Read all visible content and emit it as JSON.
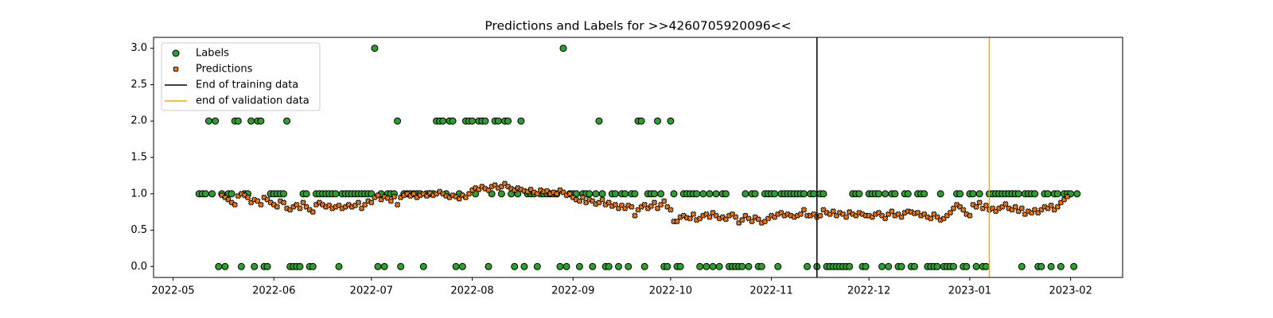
{
  "chart_data": {
    "type": "scatter",
    "title": "Predictions and Labels for >>4260705920096<<",
    "x": [
      "2022-05-09",
      "2022-05-10",
      "2022-05-11",
      "2022-05-12",
      "2022-05-13",
      "2022-05-14",
      "2022-05-15",
      "2022-05-16",
      "2022-05-17",
      "2022-05-18",
      "2022-05-19",
      "2022-05-20",
      "2022-05-21",
      "2022-05-22",
      "2022-05-23",
      "2022-05-24",
      "2022-05-25",
      "2022-05-26",
      "2022-05-27",
      "2022-05-28",
      "2022-05-29",
      "2022-05-30",
      "2022-05-31",
      "2022-06-01",
      "2022-06-02",
      "2022-06-03",
      "2022-06-04",
      "2022-06-05",
      "2022-06-06",
      "2022-06-07",
      "2022-06-08",
      "2022-06-09",
      "2022-06-10",
      "2022-06-11",
      "2022-06-12",
      "2022-06-13",
      "2022-06-14",
      "2022-06-15",
      "2022-06-16",
      "2022-06-17",
      "2022-06-18",
      "2022-06-19",
      "2022-06-20",
      "2022-06-21",
      "2022-06-22",
      "2022-06-23",
      "2022-06-24",
      "2022-06-25",
      "2022-06-26",
      "2022-06-27",
      "2022-06-28",
      "2022-06-29",
      "2022-06-30",
      "2022-07-01",
      "2022-07-02",
      "2022-07-03",
      "2022-07-04",
      "2022-07-05",
      "2022-07-06",
      "2022-07-07",
      "2022-07-08",
      "2022-07-09",
      "2022-07-10",
      "2022-07-11",
      "2022-07-12",
      "2022-07-13",
      "2022-07-14",
      "2022-07-15",
      "2022-07-16",
      "2022-07-17",
      "2022-07-18",
      "2022-07-19",
      "2022-07-20",
      "2022-07-21",
      "2022-07-22",
      "2022-07-23",
      "2022-07-24",
      "2022-07-25",
      "2022-07-26",
      "2022-07-27",
      "2022-07-28",
      "2022-07-29",
      "2022-07-30",
      "2022-07-31",
      "2022-08-01",
      "2022-08-02",
      "2022-08-03",
      "2022-08-04",
      "2022-08-05",
      "2022-08-06",
      "2022-08-07",
      "2022-08-08",
      "2022-08-09",
      "2022-08-10",
      "2022-08-11",
      "2022-08-12",
      "2022-08-13",
      "2022-08-14",
      "2022-08-15",
      "2022-08-16",
      "2022-08-17",
      "2022-08-18",
      "2022-08-19",
      "2022-08-20",
      "2022-08-21",
      "2022-08-22",
      "2022-08-23",
      "2022-08-24",
      "2022-08-25",
      "2022-08-26",
      "2022-08-27",
      "2022-08-28",
      "2022-08-29",
      "2022-08-30",
      "2022-08-31",
      "2022-09-01",
      "2022-09-02",
      "2022-09-03",
      "2022-09-04",
      "2022-09-05",
      "2022-09-06",
      "2022-09-07",
      "2022-09-08",
      "2022-09-09",
      "2022-09-10",
      "2022-09-11",
      "2022-09-12",
      "2022-09-13",
      "2022-09-14",
      "2022-09-15",
      "2022-09-16",
      "2022-09-17",
      "2022-09-18",
      "2022-09-19",
      "2022-09-20",
      "2022-09-21",
      "2022-09-22",
      "2022-09-23",
      "2022-09-24",
      "2022-09-25",
      "2022-09-26",
      "2022-09-27",
      "2022-09-28",
      "2022-09-29",
      "2022-09-30",
      "2022-10-01",
      "2022-10-02",
      "2022-10-03",
      "2022-10-04",
      "2022-10-05",
      "2022-10-06",
      "2022-10-07",
      "2022-10-08",
      "2022-10-09",
      "2022-10-10",
      "2022-10-11",
      "2022-10-12",
      "2022-10-13",
      "2022-10-14",
      "2022-10-15",
      "2022-10-16",
      "2022-10-17",
      "2022-10-18",
      "2022-10-19",
      "2022-10-20",
      "2022-10-21",
      "2022-10-22",
      "2022-10-23",
      "2022-10-24",
      "2022-10-25",
      "2022-10-26",
      "2022-10-27",
      "2022-10-28",
      "2022-10-29",
      "2022-10-30",
      "2022-10-31",
      "2022-11-01",
      "2022-11-02",
      "2022-11-03",
      "2022-11-04",
      "2022-11-05",
      "2022-11-06",
      "2022-11-07",
      "2022-11-08",
      "2022-11-09",
      "2022-11-10",
      "2022-11-11",
      "2022-11-12",
      "2022-11-13",
      "2022-11-14",
      "2022-11-15",
      "2022-11-16",
      "2022-11-17",
      "2022-11-18",
      "2022-11-19",
      "2022-11-20",
      "2022-11-21",
      "2022-11-22",
      "2022-11-23",
      "2022-11-24",
      "2022-11-25",
      "2022-11-26",
      "2022-11-27",
      "2022-11-28",
      "2022-11-29",
      "2022-11-30",
      "2022-12-01",
      "2022-12-02",
      "2022-12-03",
      "2022-12-04",
      "2022-12-05",
      "2022-12-06",
      "2022-12-07",
      "2022-12-08",
      "2022-12-09",
      "2022-12-10",
      "2022-12-11",
      "2022-12-12",
      "2022-12-13",
      "2022-12-14",
      "2022-12-15",
      "2022-12-16",
      "2022-12-17",
      "2022-12-18",
      "2022-12-19",
      "2022-12-20",
      "2022-12-21",
      "2022-12-22",
      "2022-12-23",
      "2022-12-24",
      "2022-12-25",
      "2022-12-26",
      "2022-12-27",
      "2022-12-28",
      "2022-12-29",
      "2022-12-30",
      "2022-12-31",
      "2023-01-01",
      "2023-01-02",
      "2023-01-03",
      "2023-01-04",
      "2023-01-05",
      "2023-01-06",
      "2023-01-07",
      "2023-01-08",
      "2023-01-09",
      "2023-01-10",
      "2023-01-11",
      "2023-01-12",
      "2023-01-13",
      "2023-01-14",
      "2023-01-15",
      "2023-01-16",
      "2023-01-17",
      "2023-01-18",
      "2023-01-19",
      "2023-01-20",
      "2023-01-21",
      "2023-01-22",
      "2023-01-23",
      "2023-01-24",
      "2023-01-25",
      "2023-01-26",
      "2023-01-27",
      "2023-01-28",
      "2023-01-29",
      "2023-01-30",
      "2023-01-31",
      "2023-02-01",
      "2023-02-02",
      "2023-02-03"
    ],
    "series": [
      {
        "name": "Labels",
        "color": "#2ca02c",
        "marker": "circle",
        "values": [
          1,
          1,
          1,
          2,
          1,
          2,
          0,
          1,
          0,
          1,
          1,
          2,
          2,
          0,
          1,
          1,
          2,
          0,
          2,
          2,
          0,
          0,
          1,
          1,
          1,
          1,
          1,
          2,
          0,
          0,
          0,
          0,
          1,
          1,
          0,
          0,
          1,
          1,
          1,
          1,
          1,
          1,
          1,
          0,
          1,
          1,
          1,
          1,
          1,
          1,
          1,
          1,
          1,
          1,
          3,
          0,
          1,
          0,
          1,
          1,
          1,
          2,
          0,
          1,
          1,
          1,
          1,
          1,
          1,
          0,
          1,
          1,
          1,
          2,
          2,
          2,
          1,
          2,
          2,
          0,
          1,
          0,
          2,
          2,
          2,
          1,
          2,
          2,
          2,
          0,
          1,
          2,
          2,
          1,
          2,
          2,
          1,
          0,
          1,
          2,
          0,
          1,
          1,
          1,
          0,
          1,
          1,
          1,
          1,
          1,
          1,
          0,
          3,
          0,
          1,
          1,
          1,
          0,
          1,
          1,
          1,
          0,
          1,
          2,
          1,
          0,
          0,
          1,
          1,
          0,
          1,
          1,
          0,
          1,
          1,
          2,
          2,
          0,
          1,
          1,
          1,
          2,
          1,
          0,
          0,
          2,
          1,
          0,
          0,
          1,
          1,
          1,
          1,
          1,
          0,
          1,
          0,
          1,
          0,
          1,
          0,
          1,
          1,
          0,
          0,
          0,
          0,
          0,
          1,
          0,
          1,
          1,
          0,
          0,
          1,
          1,
          1,
          1,
          0,
          1,
          1,
          1,
          1,
          1,
          1,
          1,
          1,
          0,
          1,
          1,
          0,
          1,
          1,
          0,
          0,
          0,
          0,
          0,
          0,
          0,
          0,
          1,
          1,
          1,
          0,
          0,
          1,
          1,
          1,
          1,
          0,
          1,
          0,
          1,
          1,
          0,
          0,
          1,
          1,
          0,
          0,
          1,
          1,
          1,
          0,
          0,
          0,
          0,
          1,
          0,
          0,
          0,
          0,
          1,
          1,
          0,
          0,
          1,
          1,
          0,
          1,
          0,
          0,
          1,
          1,
          1,
          1,
          1,
          1,
          1,
          1,
          1,
          1,
          0,
          1,
          1,
          1,
          1,
          0,
          0,
          1,
          1,
          0,
          1,
          1,
          0,
          1,
          1,
          1,
          0,
          1
        ]
      },
      {
        "name": "Predictions",
        "color": "#ff7f0e",
        "marker": "x",
        "values": [
          null,
          null,
          null,
          null,
          null,
          null,
          null,
          0.98,
          0.95,
          0.92,
          0.88,
          0.85,
          0.97,
          1.0,
          0.98,
          0.95,
          0.88,
          0.92,
          0.9,
          0.85,
          0.95,
          0.92,
          0.88,
          0.85,
          0.82,
          0.9,
          0.88,
          0.8,
          0.78,
          0.82,
          0.85,
          0.8,
          0.88,
          0.82,
          0.78,
          0.75,
          0.85,
          0.88,
          0.85,
          0.82,
          0.84,
          0.8,
          0.82,
          0.84,
          0.8,
          0.82,
          0.85,
          0.82,
          0.84,
          0.88,
          0.8,
          0.85,
          0.9,
          0.88,
          0.95,
          0.98,
          0.92,
          0.96,
          0.94,
          0.9,
          0.96,
          0.85,
          0.95,
          0.98,
          1.0,
          0.97,
          1.0,
          0.95,
          0.98,
          1.0,
          0.97,
          1.01,
          0.98,
          1.0,
          1.03,
          1.0,
          0.97,
          0.95,
          0.98,
          0.96,
          0.93,
          0.98,
          0.95,
          1.0,
          1.05,
          1.08,
          1.06,
          1.1,
          1.07,
          1.05,
          1.1,
          1.12,
          1.08,
          1.1,
          1.14,
          1.1,
          1.07,
          1.05,
          1.08,
          1.06,
          1.04,
          1.03,
          1.06,
          1.02,
          1.0,
          1.05,
          1.03,
          1.04,
          1.0,
          1.02,
          1.0,
          1.05,
          1.02,
          0.98,
          1.0,
          0.95,
          0.92,
          0.9,
          0.95,
          0.88,
          0.92,
          0.9,
          0.86,
          0.88,
          0.92,
          0.85,
          0.88,
          0.83,
          0.85,
          0.8,
          0.84,
          0.8,
          0.84,
          0.82,
          0.7,
          0.78,
          0.82,
          0.85,
          0.8,
          0.83,
          0.88,
          0.8,
          0.85,
          0.9,
          0.82,
          0.78,
          0.62,
          0.62,
          0.68,
          0.7,
          0.67,
          0.66,
          0.72,
          0.64,
          0.66,
          0.7,
          0.72,
          0.68,
          0.74,
          0.7,
          0.66,
          0.68,
          0.65,
          0.7,
          0.72,
          0.68,
          0.6,
          0.64,
          0.7,
          0.66,
          0.62,
          0.68,
          0.65,
          0.6,
          0.62,
          0.66,
          0.7,
          0.68,
          0.72,
          0.74,
          0.7,
          0.72,
          0.7,
          0.68,
          0.7,
          0.72,
          0.78,
          0.7,
          0.7,
          0.72,
          0.68,
          0.7,
          0.78,
          0.74,
          0.72,
          0.76,
          0.7,
          0.74,
          0.72,
          0.68,
          0.75,
          0.72,
          0.7,
          0.74,
          0.72,
          0.7,
          0.7,
          0.68,
          0.72,
          0.74,
          0.7,
          0.66,
          0.72,
          0.76,
          0.7,
          0.72,
          0.68,
          0.74,
          0.76,
          0.75,
          0.73,
          0.74,
          0.7,
          0.72,
          0.68,
          0.66,
          0.72,
          0.68,
          0.64,
          0.66,
          0.7,
          0.74,
          0.8,
          0.85,
          0.82,
          0.78,
          0.72,
          0.7,
          0.85,
          0.82,
          0.88,
          0.8,
          0.84,
          0.78,
          0.8,
          0.76,
          0.8,
          0.82,
          0.86,
          0.8,
          0.78,
          0.82,
          0.76,
          0.8,
          0.72,
          0.76,
          0.74,
          0.78,
          0.74,
          0.78,
          0.82,
          0.8,
          0.84,
          0.78,
          0.82,
          0.88,
          0.92,
          0.96,
          null,
          null,
          null
        ]
      }
    ],
    "vlines": [
      {
        "name": "End of training data",
        "x": "2022-11-15",
        "color": "#000000"
      },
      {
        "name": "end of validation data",
        "x": "2023-01-07",
        "color": "#ffa500"
      }
    ],
    "xlim": [
      "2022-04-25",
      "2023-02-17"
    ],
    "xticks": [
      {
        "value": "2022-05-01",
        "label": "2022-05"
      },
      {
        "value": "2022-06-01",
        "label": "2022-06"
      },
      {
        "value": "2022-07-01",
        "label": "2022-07"
      },
      {
        "value": "2022-08-01",
        "label": "2022-08"
      },
      {
        "value": "2022-09-01",
        "label": "2022-09"
      },
      {
        "value": "2022-10-01",
        "label": "2022-10"
      },
      {
        "value": "2022-11-01",
        "label": "2022-11"
      },
      {
        "value": "2022-12-01",
        "label": "2022-12"
      },
      {
        "value": "2023-01-01",
        "label": "2023-01"
      },
      {
        "value": "2023-02-01",
        "label": "2023-02"
      }
    ],
    "ylim": [
      -0.15,
      3.15
    ],
    "yticks": [
      {
        "value": 0,
        "label": "0.0"
      },
      0.5,
      {
        "value": 1,
        "label": "1.0"
      },
      1.5,
      {
        "value": 2,
        "label": "2.0"
      },
      2.5,
      {
        "value": 3,
        "label": "3.0"
      }
    ],
    "legend": "upper left"
  }
}
